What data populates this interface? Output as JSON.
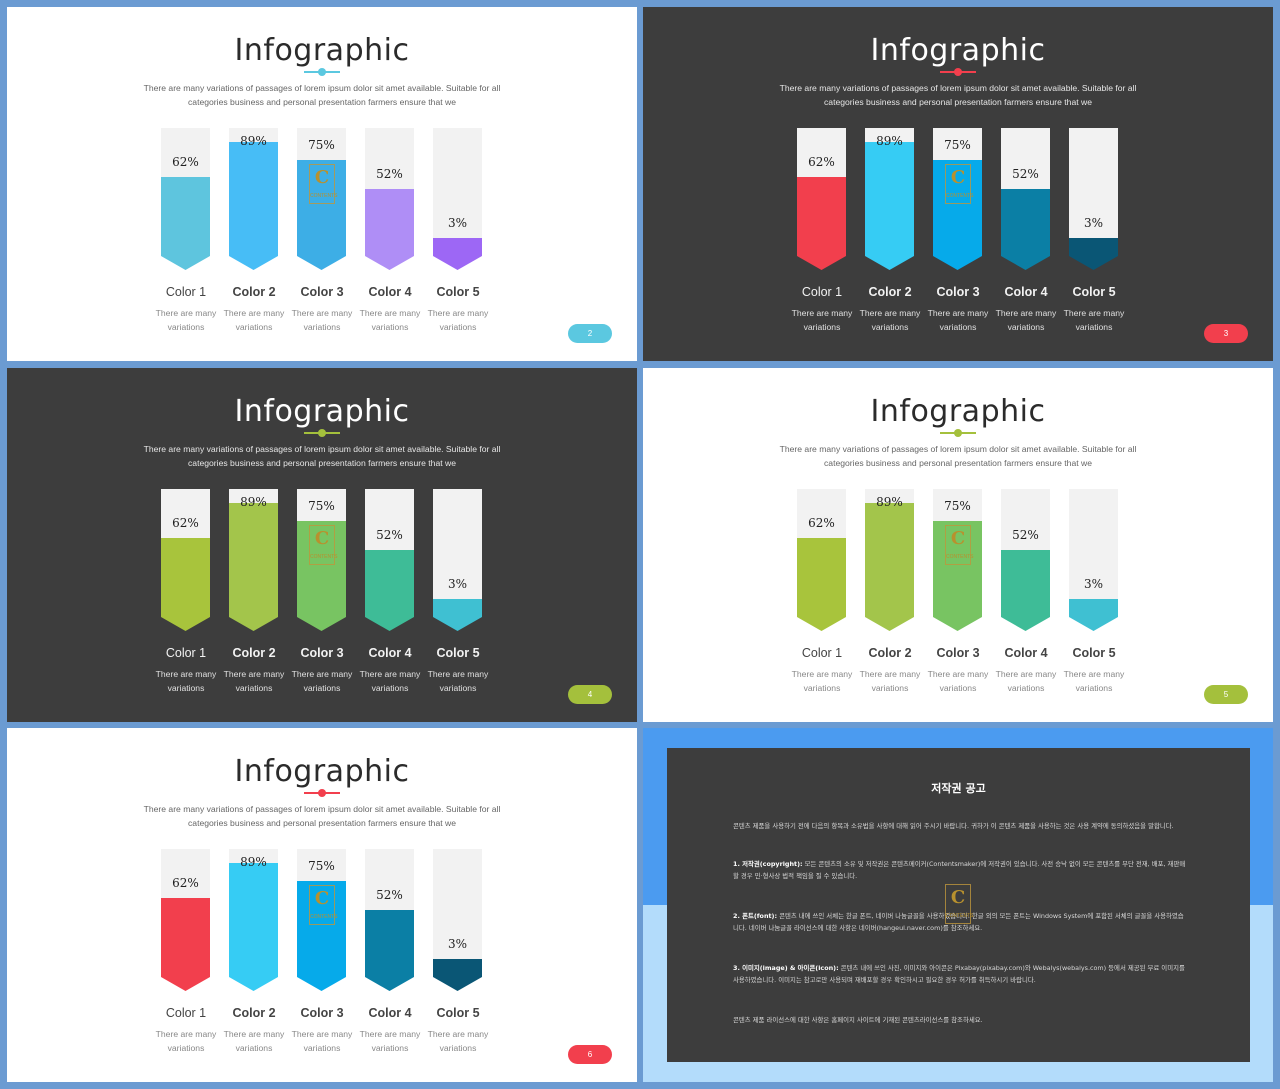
{
  "slides": [
    {
      "id": 1,
      "theme": "light",
      "title": "Infographic",
      "subtitle": "There are many variations of passages of lorem ipsum dolor sit amet available. Suitable for all categories business and personal presentation farmers ensure that we",
      "accent": "#5bc8e0",
      "page": "2",
      "bars": [
        {
          "label": "Color 1",
          "bold": false,
          "pct_text": "62%",
          "pct": 62,
          "color": "#5ec5de",
          "desc": "There are many variations"
        },
        {
          "label": "Color 2",
          "bold": true,
          "pct_text": "89%",
          "pct": 89,
          "color": "#47bdf6",
          "desc": "There are many variations"
        },
        {
          "label": "Color 3",
          "bold": true,
          "pct_text": "75%",
          "pct": 75,
          "color": "#3daee6",
          "desc": "There are many variations"
        },
        {
          "label": "Color 4",
          "bold": true,
          "pct_text": "52%",
          "pct": 52,
          "color": "#af8ef6",
          "desc": "There are many variations"
        },
        {
          "label": "Color 5",
          "bold": true,
          "pct_text": "3%",
          "pct": 3,
          "color": "#9d67f5",
          "desc": "There are many variations"
        }
      ]
    },
    {
      "id": 2,
      "theme": "dark",
      "title": "Infographic",
      "subtitle": "There are many variations of passages of lorem ipsum dolor sit amet available. Suitable for all categories business and personal presentation farmers ensure that we",
      "accent": "#f23f4d",
      "page": "3",
      "bars": [
        {
          "label": "Color 1",
          "bold": false,
          "pct_text": "62%",
          "pct": 62,
          "color": "#f23f4d",
          "desc": "There are many variations"
        },
        {
          "label": "Color 2",
          "bold": true,
          "pct_text": "89%",
          "pct": 89,
          "color": "#36ccf4",
          "desc": "There are many variations"
        },
        {
          "label": "Color 3",
          "bold": true,
          "pct_text": "75%",
          "pct": 75,
          "color": "#06aaea",
          "desc": "There are many variations"
        },
        {
          "label": "Color 4",
          "bold": true,
          "pct_text": "52%",
          "pct": 52,
          "color": "#0b7fa5",
          "desc": "There are many variations"
        },
        {
          "label": "Color 5",
          "bold": true,
          "pct_text": "3%",
          "pct": 3,
          "color": "#0a5675",
          "desc": "There are many variations"
        }
      ]
    },
    {
      "id": 3,
      "theme": "dark",
      "title": "Infographic",
      "subtitle": "There are many variations of passages of lorem ipsum dolor sit amet available. Suitable for all categories business and personal presentation farmers ensure that we",
      "accent": "#a4c03c",
      "page": "4",
      "bars": [
        {
          "label": "Color 1",
          "bold": false,
          "pct_text": "62%",
          "pct": 62,
          "color": "#a8c43c",
          "desc": "There are many variations"
        },
        {
          "label": "Color 2",
          "bold": true,
          "pct_text": "89%",
          "pct": 89,
          "color": "#a3c54b",
          "desc": "There are many variations"
        },
        {
          "label": "Color 3",
          "bold": true,
          "pct_text": "75%",
          "pct": 75,
          "color": "#78c462",
          "desc": "There are many variations"
        },
        {
          "label": "Color 4",
          "bold": true,
          "pct_text": "52%",
          "pct": 52,
          "color": "#3ebc97",
          "desc": "There are many variations"
        },
        {
          "label": "Color 5",
          "bold": true,
          "pct_text": "3%",
          "pct": 3,
          "color": "#3fc0d2",
          "desc": "There are many variations"
        }
      ]
    },
    {
      "id": 4,
      "theme": "light",
      "title": "Infographic",
      "subtitle": "There are many variations of passages of lorem ipsum dolor sit amet available. Suitable for all categories business and personal presentation farmers ensure that we",
      "accent": "#a4c03c",
      "page": "5",
      "bars": [
        {
          "label": "Color 1",
          "bold": false,
          "pct_text": "62%",
          "pct": 62,
          "color": "#a8c43c",
          "desc": "There are many variations"
        },
        {
          "label": "Color 2",
          "bold": true,
          "pct_text": "89%",
          "pct": 89,
          "color": "#a3c54b",
          "desc": "There are many variations"
        },
        {
          "label": "Color 3",
          "bold": true,
          "pct_text": "75%",
          "pct": 75,
          "color": "#78c462",
          "desc": "There are many variations"
        },
        {
          "label": "Color 4",
          "bold": true,
          "pct_text": "52%",
          "pct": 52,
          "color": "#3ebc97",
          "desc": "There are many variations"
        },
        {
          "label": "Color 5",
          "bold": true,
          "pct_text": "3%",
          "pct": 3,
          "color": "#3fc0d2",
          "desc": "There are many variations"
        }
      ]
    },
    {
      "id": 5,
      "theme": "light",
      "title": "Infographic",
      "subtitle": "There are many variations of passages of lorem ipsum dolor sit amet available. Suitable for all categories business and personal presentation farmers ensure that we",
      "accent": "#f23f4d",
      "page": "6",
      "bars": [
        {
          "label": "Color 1",
          "bold": false,
          "pct_text": "62%",
          "pct": 62,
          "color": "#f23f4d",
          "desc": "There are many variations"
        },
        {
          "label": "Color 2",
          "bold": true,
          "pct_text": "89%",
          "pct": 89,
          "color": "#36ccf4",
          "desc": "There are many variations"
        },
        {
          "label": "Color 3",
          "bold": true,
          "pct_text": "75%",
          "pct": 75,
          "color": "#06aaea",
          "desc": "There are many variations"
        },
        {
          "label": "Color 4",
          "bold": true,
          "pct_text": "52%",
          "pct": 52,
          "color": "#0b7fa5",
          "desc": "There are many variations"
        },
        {
          "label": "Color 5",
          "bold": true,
          "pct_text": "3%",
          "pct": 3,
          "color": "#0a5675",
          "desc": "There are many variations"
        }
      ]
    }
  ],
  "watermark": {
    "letter": "C",
    "text": "CONTENTS"
  },
  "notice": {
    "title": "저작권 공고",
    "p1": "콘텐츠 제품을 사용하기 전에 다음의 항목과 소유법을 사항에 대해 읽어 주시기 바랍니다. 귀하가 이 콘텐츠 제품을 사용하는 것은 사용 계약에 동의하셨음을 말합니다.",
    "p2_head": "1. 저작권(copyright):",
    "p2": " 모든 콘텐츠의 소유 및 저작권은 콘텐츠메이커(Contentsmaker)에 저작권이 있습니다. 사전 승낙 없이 모든 콘텐츠를 무단 전재, 배포, 재판매할 경우 민·형사상 법적 책임을 질 수 있습니다.",
    "p3_head": "2. 폰트(font):",
    "p3": " 콘텐츠 내에 쓰인 서체는 한글 폰트, 네이버 나눔글꼴을 사용하였습니다. 한글 외의 모든 폰트는 Windows System에 포함된 서체의 글꼴을 사용하였습니다. 네이버 나눔글꼴 라이선스에 대한 사항은 네이버(hangeul.naver.com)를 참조하세요.",
    "p4_head": "3. 이미지(image) & 아이콘(icon):",
    "p4": " 콘텐츠 내에 쓰인 사진, 이미지와 아이콘은 Pixabay(pixabay.com)와 Webalys(webalys.com) 등에서 제공된 무료 이미지를 사용하였습니다. 이미지는 참고로만 사용되며 재배포할 경우 확인하시고 필요한 경우 허가를 취득하시기 바랍니다.",
    "p5": "콘텐츠 제품 라이선스에 대한 사항은 홈페이지 사이트에 기재된 콘텐츠라이선스를 참조하세요."
  }
}
